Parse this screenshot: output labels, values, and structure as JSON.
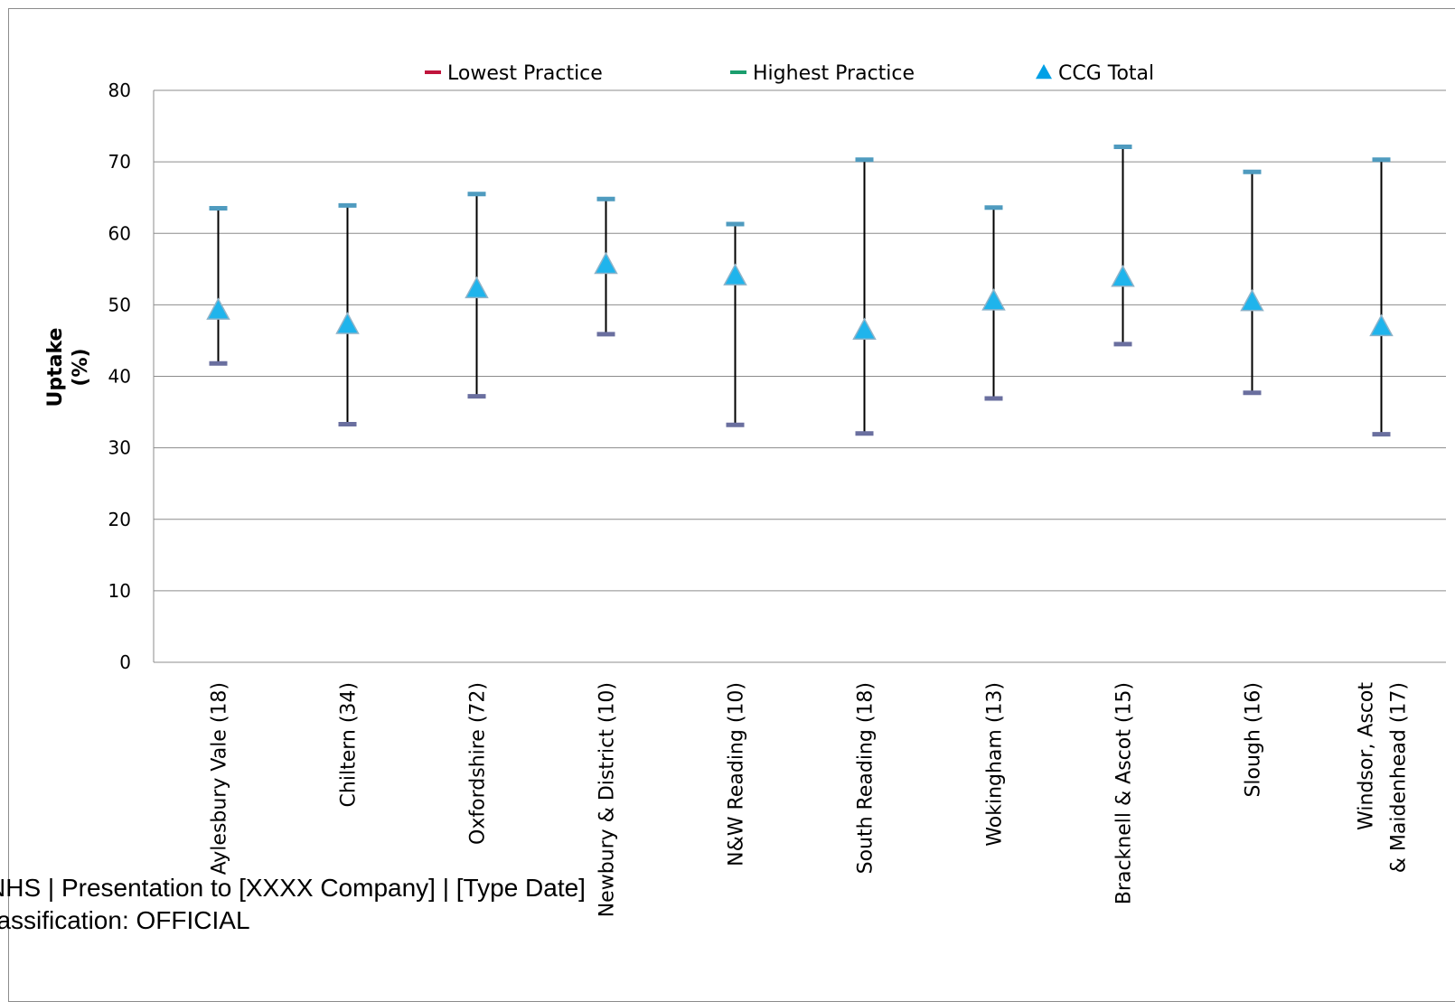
{
  "chart_data": {
    "type": "error-bar",
    "ylabel": "Uptake\n(%)",
    "ylim": [
      0,
      80
    ],
    "yticks": [
      0,
      10,
      20,
      30,
      40,
      50,
      60,
      70,
      80
    ],
    "grid": true,
    "legend_position": "top",
    "legend": [
      {
        "label": "Lowest Practice",
        "color": "#c0143c",
        "marker": "dash"
      },
      {
        "label": "Highest Practice",
        "color": "#1a9e6e",
        "marker": "dash"
      },
      {
        "label": "CCG Total",
        "color": "#00a0e6",
        "marker": "triangle"
      }
    ],
    "categories": [
      "Aylesbury Vale (18)",
      "Chiltern (34)",
      "Oxfordshire (72)",
      "Newbury & District (10)",
      "N&W Reading (10)",
      "South Reading (18)",
      "Wokingham (13)",
      "Bracknell & Ascot (15)",
      "Slough (16)",
      "Windsor, Ascot\n& Maidenhead (17)"
    ],
    "series": [
      {
        "name": "Lowest Practice",
        "values": [
          41.8,
          33.3,
          37.2,
          45.9,
          33.2,
          32.0,
          36.9,
          44.5,
          37.7,
          31.9
        ]
      },
      {
        "name": "Highest Practice",
        "values": [
          63.5,
          63.9,
          65.5,
          64.8,
          61.3,
          70.3,
          63.6,
          72.1,
          68.6,
          70.3
        ]
      },
      {
        "name": "CCG Total",
        "values": [
          49.3,
          47.3,
          52.3,
          55.7,
          54.1,
          46.5,
          50.6,
          53.9,
          50.5,
          47.0
        ]
      }
    ],
    "colors": {
      "error_bar": "#000000",
      "cap": "#4f9bbf",
      "triangle_fill": "#1fb4ec",
      "triangle_stroke": "#8eb3c9",
      "grid": "#8c8c8c",
      "axis": "#8c8c8c"
    }
  },
  "footer": {
    "line1": "NHS | Presentation to [XXXX Company] | [Type Date]",
    "line2": "Classification: OFFICIAL"
  }
}
